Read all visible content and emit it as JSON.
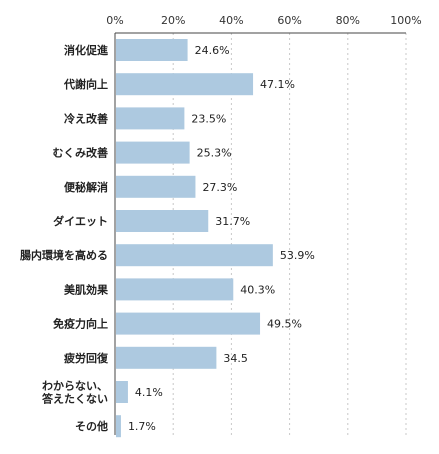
{
  "chart_data": {
    "type": "bar",
    "orientation": "horizontal",
    "title": "",
    "xlabel": "",
    "ylabel": "",
    "xlim": [
      0,
      100
    ],
    "x_ticks": [
      "0%",
      "20%",
      "40%",
      "60%",
      "80%",
      "100%"
    ],
    "x_tick_values": [
      0,
      20,
      40,
      60,
      80,
      100
    ],
    "grid": true,
    "legend": "none",
    "bar_color": "#adc9e0",
    "categories": [
      [
        "消化促進"
      ],
      [
        "代謝向上"
      ],
      [
        "冷え改善"
      ],
      [
        "むくみ改善"
      ],
      [
        "便秘解消"
      ],
      [
        "ダイエット"
      ],
      [
        "腸内環境を高める"
      ],
      [
        "美肌効果"
      ],
      [
        "免疫力向上"
      ],
      [
        "疲労回復"
      ],
      [
        "わからない、",
        "答えたくない"
      ],
      [
        "その他"
      ]
    ],
    "values": [
      24.6,
      47.1,
      23.5,
      25.3,
      27.3,
      31.7,
      53.9,
      40.3,
      49.5,
      34.5,
      4.1,
      1.7
    ],
    "value_labels": [
      "24.6%",
      "47.1%",
      "23.5%",
      "25.3%",
      "27.3%",
      "31.7%",
      "53.9%",
      "40.3%",
      "49.5%",
      "34.5",
      "4.1%",
      "1.7%"
    ]
  }
}
